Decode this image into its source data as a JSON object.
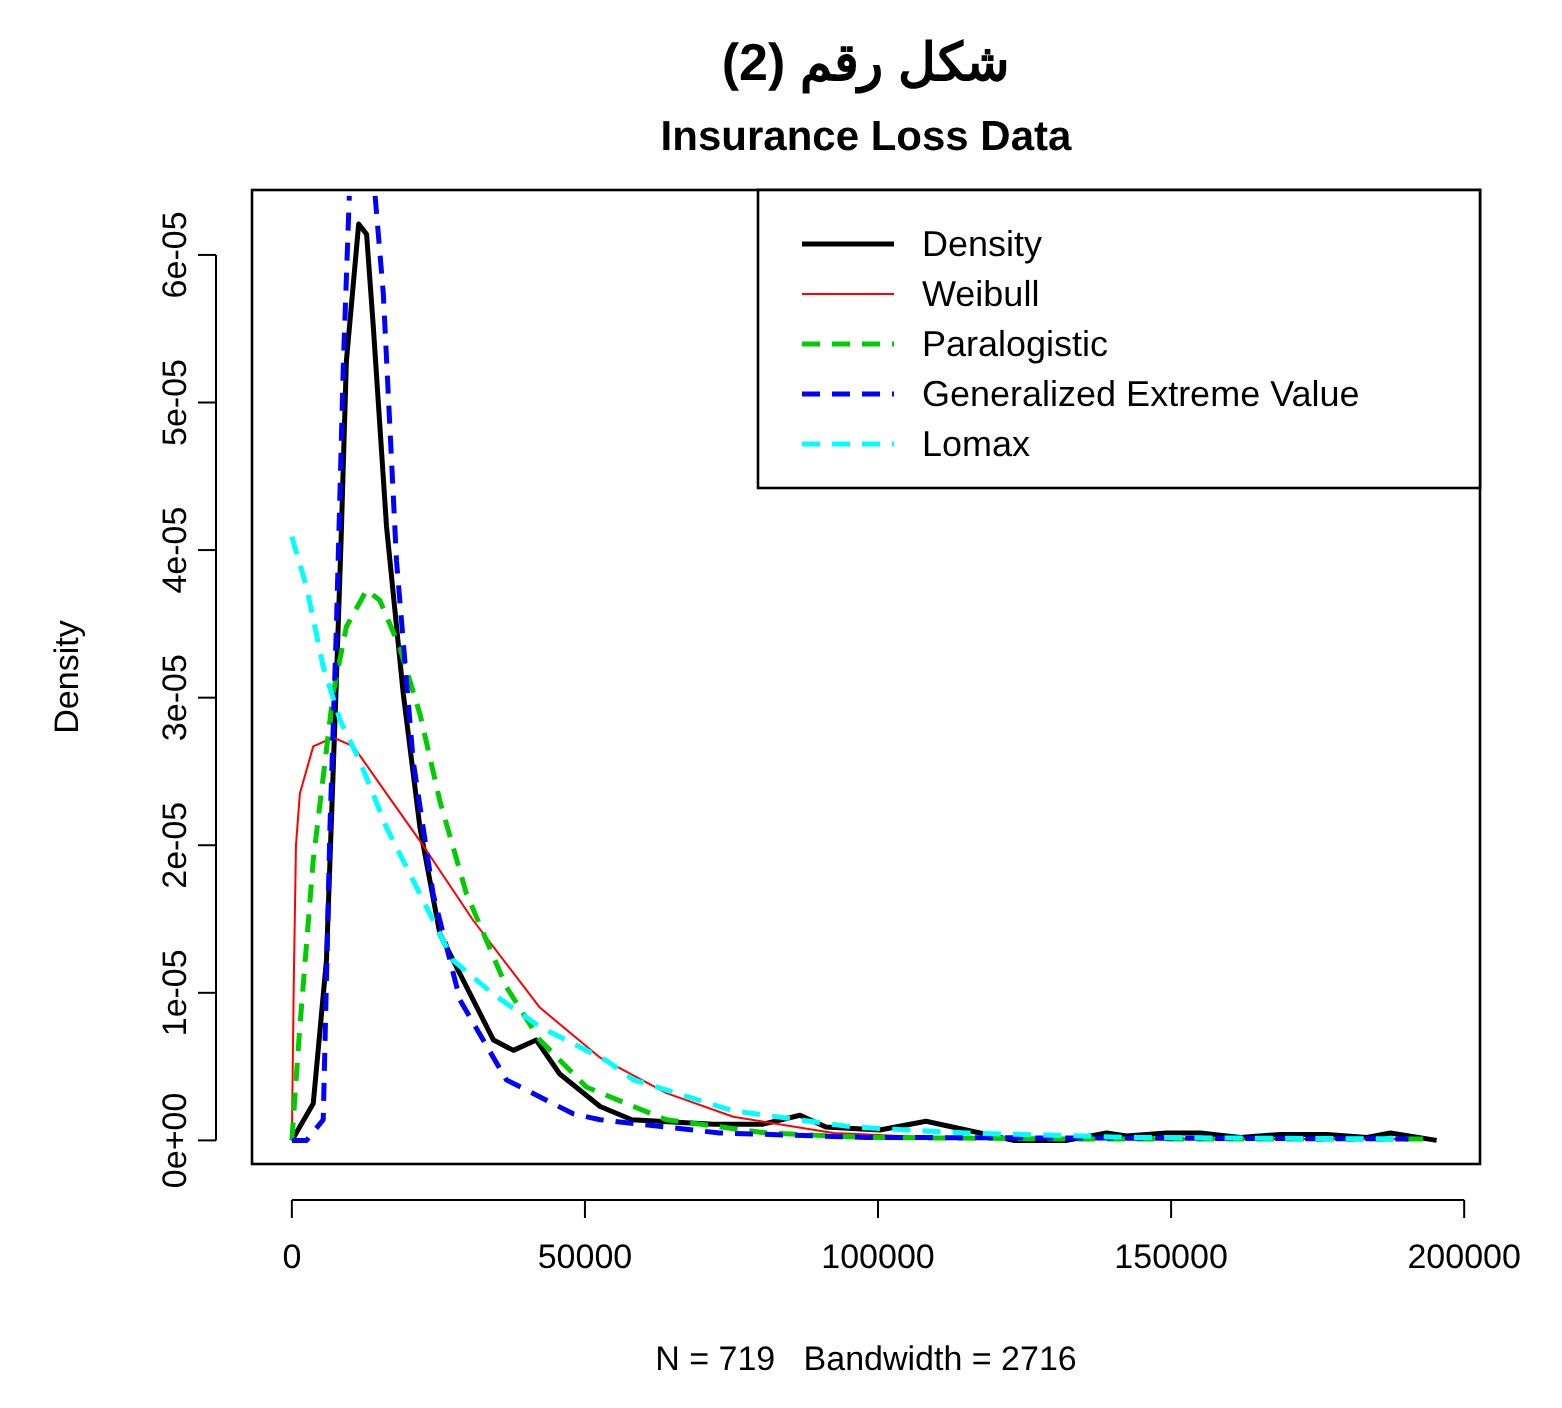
{
  "chart_data": {
    "type": "line",
    "title": "شكل رقم (2)",
    "subtitle": "Insurance Loss Data",
    "xlabel": "N = 719   Bandwidth = 2716",
    "ylabel": "Density",
    "xlim": [
      -6800,
      202700
    ],
    "ylim": [
      -1.6e-06,
      6.44e-05
    ],
    "xticks": [
      0,
      50000,
      100000,
      150000,
      200000
    ],
    "yticks": [
      {
        "value": 0,
        "label": "0e+00"
      },
      {
        "value": 1e-05,
        "label": "1e-05"
      },
      {
        "value": 2e-05,
        "label": "2e-05"
      },
      {
        "value": 3e-05,
        "label": "3e-05"
      },
      {
        "value": 4e-05,
        "label": "4e-05"
      },
      {
        "value": 5e-05,
        "label": "5e-05"
      },
      {
        "value": 6e-05,
        "label": "6e-05"
      }
    ],
    "grid": false,
    "legend": "top right",
    "series": [
      {
        "name": "Density",
        "color": "#000000",
        "line_style": "solid",
        "x": [
          0,
          3650,
          5900,
          7600,
          8400,
          9300,
          11400,
          12750,
          13900,
          16150,
          19000,
          21850,
          25250,
          29800,
          34400,
          37800,
          41700,
          45700,
          52600,
          58000,
          71900,
          80400,
          86700,
          91100,
          100300,
          108200,
          117400,
          123100,
          132200,
          139000,
          142400,
          149200,
          155000,
          161800,
          168600,
          176600,
          183400,
          187400,
          195300
        ],
        "values": [
          0,
          2.5e-06,
          1.22e-05,
          3.12e-05,
          4.07e-05,
          5.28e-05,
          6.21e-05,
          6.14e-05,
          5.51e-05,
          4.16e-05,
          3.03e-05,
          2.12e-05,
          1.4e-05,
          1.04e-05,
          6.8e-06,
          6.1e-06,
          6.8e-06,
          4.5e-06,
          2.3e-06,
          1.4e-06,
          1.1e-06,
          1.1e-06,
          1.7e-06,
          9e-07,
          7e-07,
          1.3e-06,
          5e-07,
          0,
          0,
          5e-07,
          3e-07,
          5e-07,
          5e-07,
          2e-07,
          4e-07,
          4e-07,
          2e-07,
          5e-07,
          0
        ]
      },
      {
        "name": "Weibull",
        "color": "#ff0000",
        "line_style": "solid",
        "x": [
          0,
          300,
          700,
          1370,
          3650,
          7050,
          10500,
          16150,
          21850,
          30950,
          42300,
          52600,
          63900,
          75300,
          92400,
          109500,
          143600,
          189100
        ],
        "values": [
          0,
          1e-05,
          2e-05,
          2.35e-05,
          2.67e-05,
          2.73e-05,
          2.67e-05,
          2.35e-05,
          2.03e-05,
          1.49e-05,
          9e-06,
          5.6e-06,
          3.2e-06,
          1.6e-06,
          5e-07,
          2e-07,
          1e-07,
          1e-07
        ]
      },
      {
        "name": "Paralogistic",
        "color": "#00cd00",
        "line_style": "dashed",
        "x": [
          0,
          1370,
          3650,
          7050,
          9300,
          12750,
          15000,
          18400,
          21850,
          25250,
          29800,
          36600,
          42300,
          50300,
          58300,
          63900,
          81000,
          98000,
          132200,
          193000
        ],
        "values": [
          0,
          7.7e-06,
          1.9e-05,
          3.03e-05,
          3.48e-05,
          3.73e-05,
          3.66e-05,
          3.34e-05,
          2.89e-05,
          2.3e-05,
          1.67e-05,
          1.04e-05,
          6.8e-06,
          3.6e-06,
          2.3e-06,
          1.4e-06,
          5e-07,
          2e-07,
          1e-07,
          1e-07
        ]
      },
      {
        "name": "Generalized Extreme Value",
        "color": "#0000ff",
        "line_style": "dashed",
        "x": [
          0,
          2500,
          5350,
          6500,
          7600,
          8800,
          9800,
          12000,
          14200,
          15600,
          17850,
          20700,
          24100,
          28700,
          36600,
          48000,
          52600,
          73000,
          98000,
          190500
        ],
        "values": [
          0,
          0,
          1.4e-06,
          2.12e-05,
          3.48e-05,
          5.28e-05,
          6.4e-05,
          null,
          6.4e-05,
          5.74e-05,
          3.93e-05,
          2.57e-05,
          1.67e-05,
          9.5e-06,
          4.1e-06,
          1.8e-06,
          1.4e-06,
          5e-07,
          2e-07,
          1e-07
        ]
      },
      {
        "name": "Lomax",
        "color": "#00ffff",
        "line_style": "dashed",
        "x": [
          0,
          2500,
          5350,
          8200,
          11600,
          16150,
          21850,
          27500,
          34400,
          42300,
          53700,
          58300,
          75300,
          95800,
          115100,
          143600,
          188000
        ],
        "values": [
          4.09e-05,
          3.75e-05,
          3.21e-05,
          2.85e-05,
          2.57e-05,
          2.12e-05,
          1.67e-05,
          1.22e-05,
          9.9e-06,
          7.7e-06,
          5.4e-06,
          4.1e-06,
          2e-06,
          9e-07,
          5e-07,
          2e-07,
          1e-07
        ]
      }
    ]
  }
}
